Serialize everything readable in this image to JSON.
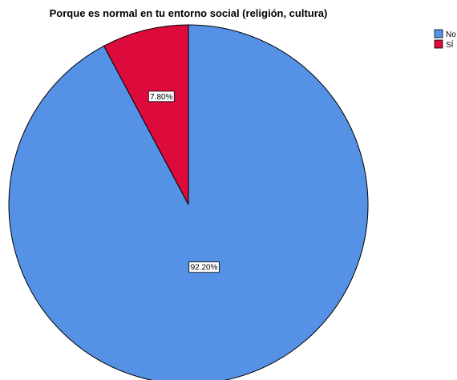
{
  "chart_data": {
    "type": "pie",
    "title": "Porque es normal en tu entorno social (religión, cultura)",
    "categories": [
      "No",
      "SÍ"
    ],
    "values": [
      92.2,
      7.8
    ],
    "data_labels": [
      "92.20%",
      "7.80%"
    ],
    "colors": [
      "#5591E5",
      "#DC0B3B"
    ],
    "legend_position": "top-right"
  }
}
